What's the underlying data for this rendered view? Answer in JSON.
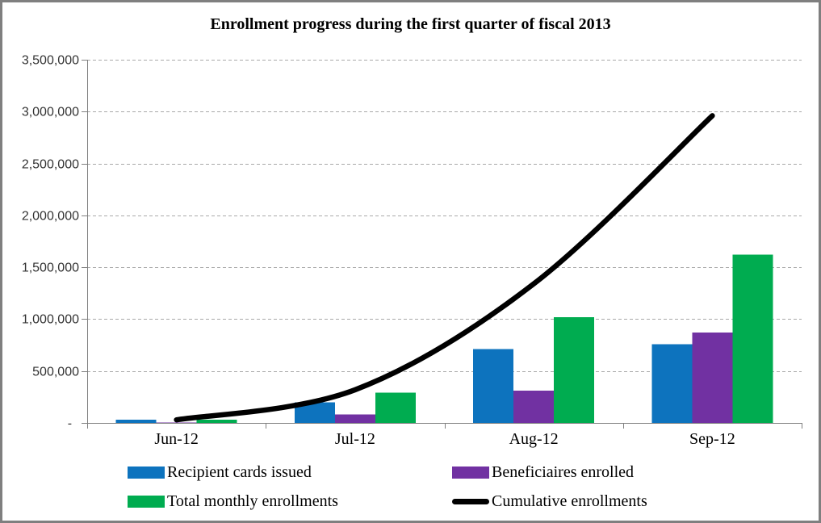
{
  "chart_data": {
    "type": "bar+line",
    "title": "Enrollment progress during the first quarter of fiscal 2013",
    "categories": [
      "Jun-12",
      "Jul-12",
      "Aug-12",
      "Sep-12"
    ],
    "series": [
      {
        "name": "Recipient cards issued",
        "type": "bar",
        "color": "#0d73be",
        "values": [
          30000,
          200000,
          710000,
          760000
        ]
      },
      {
        "name": "Beneficiaires enrolled",
        "type": "bar",
        "color": "#7131a2",
        "values": [
          5000,
          80000,
          310000,
          870000
        ]
      },
      {
        "name": "Total monthly enrollments",
        "type": "bar",
        "color": "#00ac50",
        "values": [
          30000,
          290000,
          1020000,
          1620000
        ]
      },
      {
        "name": "Cumulative enrollments",
        "type": "line",
        "color": "#000000",
        "values": [
          30000,
          320000,
          1340000,
          2960000
        ]
      }
    ],
    "ylim": [
      0,
      3500000
    ],
    "ytick_interval": 500000,
    "ytick_labels": [
      "-  ",
      "500,000",
      "1,000,000",
      "1,500,000",
      "2,000,000",
      "2,500,000",
      "3,000,000",
      "3,500,000"
    ],
    "xlabel": "",
    "ylabel": "",
    "grid": "horizontal dashed",
    "legend_position": "bottom",
    "colors": {
      "gridline": "#a9a9a9",
      "axis": "#808080",
      "frame_border": "#7f7f7f",
      "background": "#ffffff"
    }
  }
}
